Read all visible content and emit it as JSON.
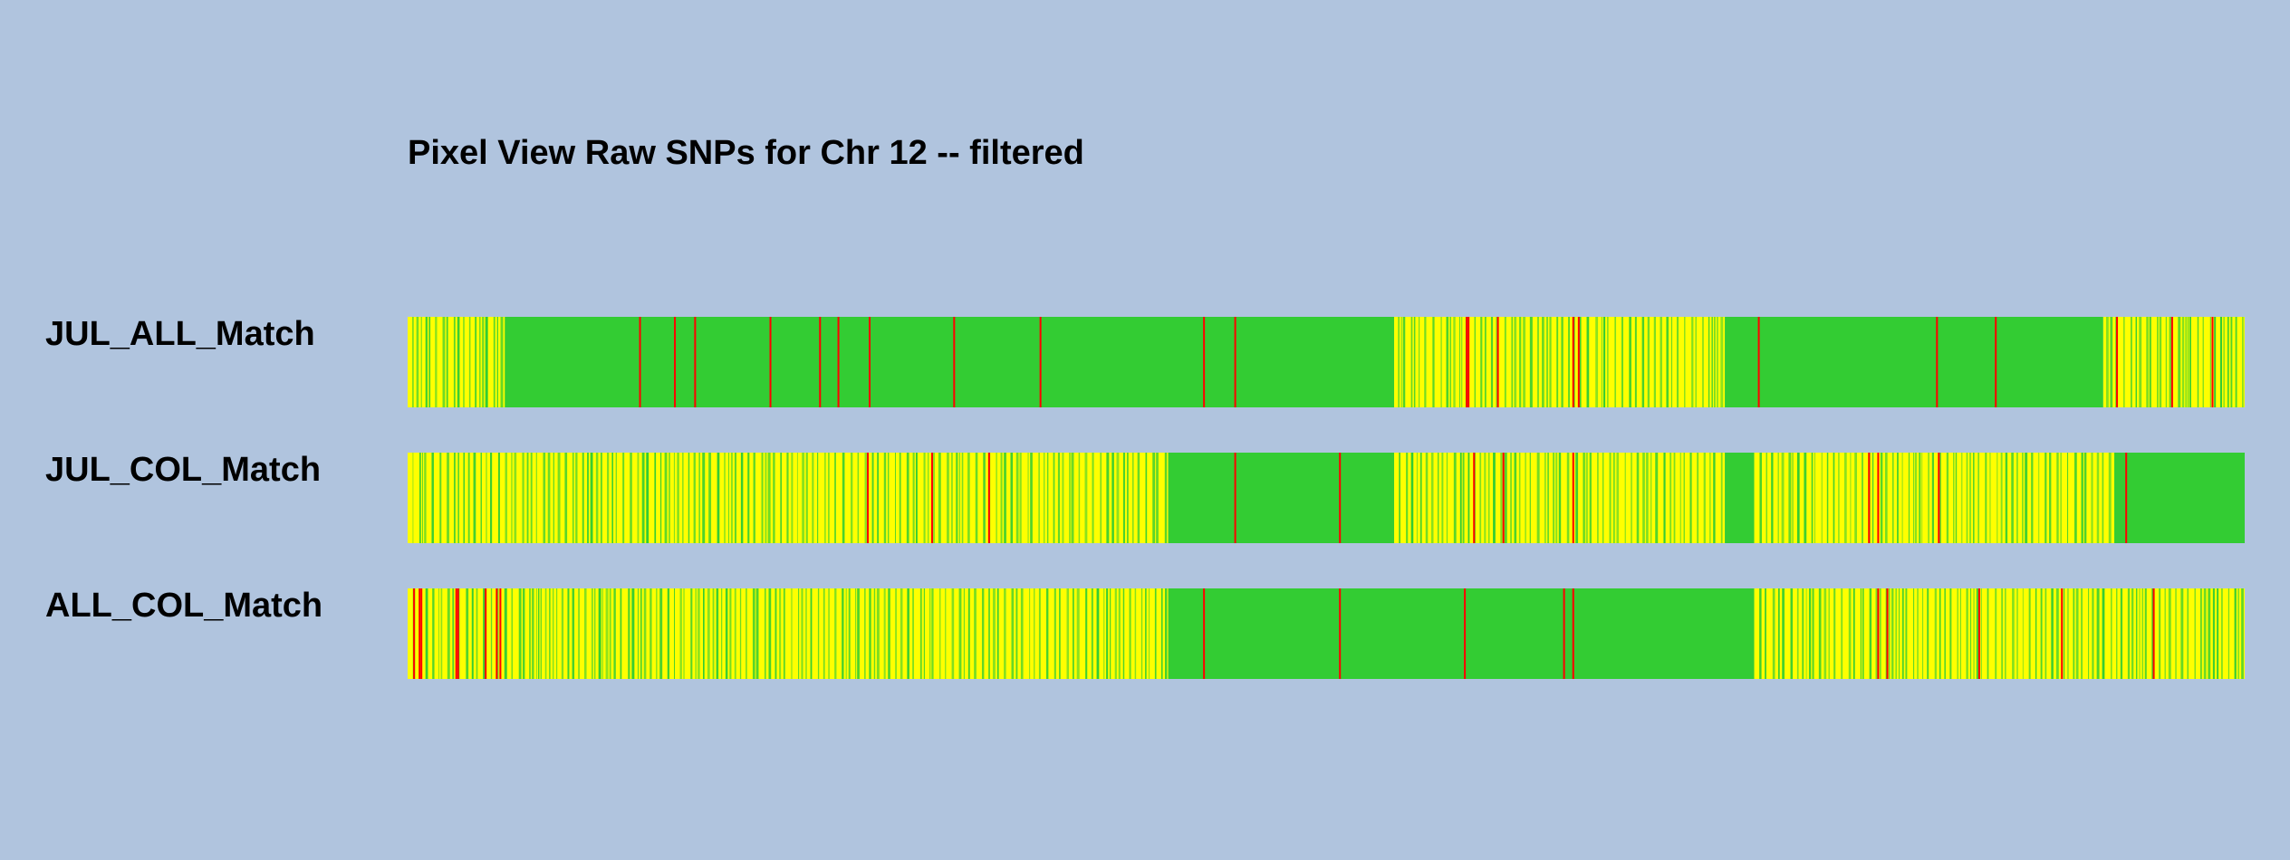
{
  "title": "Pixel View Raw SNPs for Chr 12 -- filtered",
  "colors": {
    "background": "#b0c4de",
    "match": "#33cc33",
    "mixed": "#ffff00",
    "mismatch": "#ff0000"
  },
  "chart_data": {
    "type": "heatmap",
    "title": "Pixel View Raw SNPs for Chr 12 -- filtered",
    "tracks": [
      {
        "name": "JUL_ALL_Match",
        "regions": [
          {
            "start": 0.0,
            "end": 0.053,
            "state": "mixed"
          },
          {
            "start": 0.053,
            "end": 0.537,
            "state": "match"
          },
          {
            "start": 0.537,
            "end": 0.717,
            "state": "mixed"
          },
          {
            "start": 0.717,
            "end": 0.923,
            "state": "match"
          },
          {
            "start": 0.923,
            "end": 1.0,
            "state": "mixed"
          }
        ],
        "mismatch_positions": [
          0.126,
          0.145,
          0.156,
          0.197,
          0.224,
          0.234,
          0.251,
          0.297,
          0.344,
          0.433,
          0.45,
          0.577,
          0.576,
          0.593,
          0.634,
          0.637,
          0.735,
          0.832,
          0.864,
          0.93,
          0.96,
          0.982
        ]
      },
      {
        "name": "JUL_COL_Match",
        "regions": [
          {
            "start": 0.0,
            "end": 0.414,
            "state": "mixed"
          },
          {
            "start": 0.414,
            "end": 0.537,
            "state": "match"
          },
          {
            "start": 0.537,
            "end": 0.717,
            "state": "mixed"
          },
          {
            "start": 0.717,
            "end": 0.733,
            "state": "match"
          },
          {
            "start": 0.733,
            "end": 0.929,
            "state": "mixed"
          },
          {
            "start": 0.929,
            "end": 1.0,
            "state": "match"
          }
        ],
        "mismatch_positions": [
          0.25,
          0.285,
          0.316,
          0.45,
          0.507,
          0.58,
          0.596,
          0.634,
          0.795,
          0.8,
          0.833,
          0.935
        ]
      },
      {
        "name": "ALL_COL_Match",
        "regions": [
          {
            "start": 0.0,
            "end": 0.414,
            "state": "mixed"
          },
          {
            "start": 0.414,
            "end": 0.733,
            "state": "match"
          },
          {
            "start": 0.733,
            "end": 1.0,
            "state": "mixed"
          }
        ],
        "mismatch_positions": [
          0.003,
          0.006,
          0.007,
          0.026,
          0.027,
          0.042,
          0.048,
          0.05,
          0.433,
          0.507,
          0.575,
          0.629,
          0.634,
          0.8,
          0.805,
          0.855,
          0.9,
          0.95
        ]
      }
    ]
  }
}
